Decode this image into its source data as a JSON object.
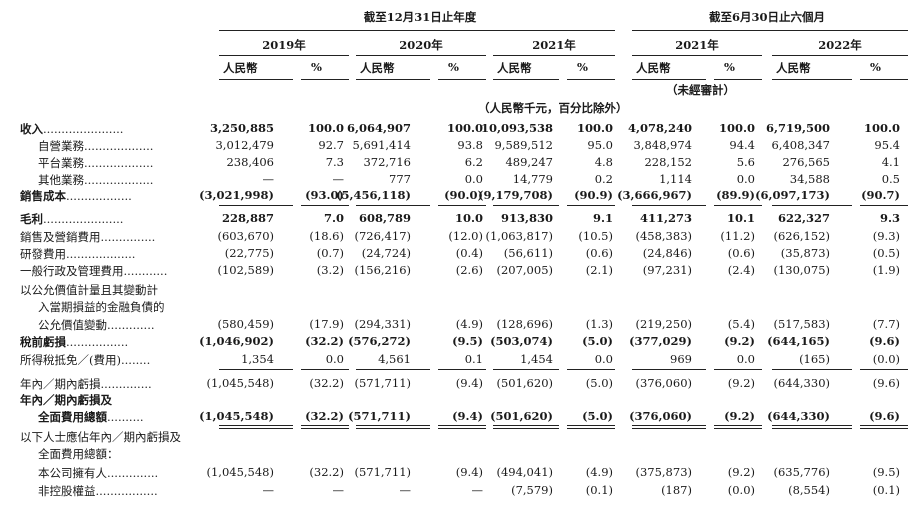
{
  "header": {
    "period_year": "截至12月31日止年度",
    "period_half": "截至6月30日止六個月",
    "years": [
      "2019年",
      "2020年",
      "2021年",
      "2021年",
      "2022年"
    ],
    "col_rmb": "人民幣",
    "col_pct": "%",
    "unaudited": "（未經審計）",
    "unit_note": "（人民幣千元，百分比除外）"
  },
  "rows": [
    {
      "label": "收入",
      "dots": "......................",
      "bold": true,
      "indent": 0,
      "values": [
        "3,250,885",
        "100.0",
        "6,064,907",
        "100.0",
        "10,093,538",
        "100.0",
        "4,078,240",
        "100.0",
        "6,719,500",
        "100.0"
      ]
    },
    {
      "label": "自營業務",
      "dots": "...................",
      "bold": false,
      "indent": 1,
      "values": [
        "3,012,479",
        "92.7",
        "5,691,414",
        "93.8",
        "9,589,512",
        "95.0",
        "3,848,974",
        "94.4",
        "6,408,347",
        "95.4"
      ]
    },
    {
      "label": "平台業務",
      "dots": "...................",
      "bold": false,
      "indent": 1,
      "values": [
        "238,406",
        "7.3",
        "372,716",
        "6.2",
        "489,247",
        "4.8",
        "228,152",
        "5.6",
        "276,565",
        "4.1"
      ]
    },
    {
      "label": "其他業務",
      "dots": "...................",
      "bold": false,
      "indent": 1,
      "values": [
        "—",
        "—",
        "777",
        "0.0",
        "14,779",
        "0.2",
        "1,114",
        "0.0",
        "34,588",
        "0.5"
      ]
    },
    {
      "label": "銷售成本",
      "dots": "..................",
      "bold": true,
      "indent": 0,
      "values": [
        "(3,021,998)",
        "(93.0)",
        "(5,456,118)",
        "(90.0)",
        "(9,179,708)",
        "(90.9)",
        "(3,666,967)",
        "(89.9)",
        "(6,097,173)",
        "(90.7)"
      ]
    },
    {
      "label": "毛利",
      "dots": "......................",
      "bold": true,
      "indent": 0,
      "values": [
        "228,887",
        "7.0",
        "608,789",
        "10.0",
        "913,830",
        "9.1",
        "411,273",
        "10.1",
        "622,327",
        "9.3"
      ]
    },
    {
      "label": "銷售及營銷費用",
      "dots": "...............",
      "bold": false,
      "indent": 0,
      "values": [
        "(603,670)",
        "(18.6)",
        "(726,417)",
        "(12.0)",
        "(1,063,817)",
        "(10.5)",
        "(458,383)",
        "(11.2)",
        "(626,152)",
        "(9.3)"
      ]
    },
    {
      "label": "研發費用",
      "dots": "...................",
      "bold": false,
      "indent": 0,
      "values": [
        "(22,775)",
        "(0.7)",
        "(24,724)",
        "(0.4)",
        "(56,611)",
        "(0.6)",
        "(24,846)",
        "(0.6)",
        "(35,873)",
        "(0.5)"
      ]
    },
    {
      "label": "一般行政及管理費用",
      "dots": "............",
      "bold": false,
      "indent": 0,
      "values": [
        "(102,589)",
        "(3.2)",
        "(156,216)",
        "(2.6)",
        "(207,005)",
        "(2.1)",
        "(97,231)",
        "(2.4)",
        "(130,075)",
        "(1.9)"
      ]
    },
    {
      "label": "以公允價值計量且其變動計",
      "dots": "",
      "bold": false,
      "indent": 0,
      "values": []
    },
    {
      "label": "入當期損益的金融負債的",
      "dots": "",
      "bold": false,
      "indent": 1,
      "values": []
    },
    {
      "label": "公允價值變動",
      "dots": ".............",
      "bold": false,
      "indent": 1,
      "values": [
        "(580,459)",
        "(17.9)",
        "(294,331)",
        "(4.9)",
        "(128,696)",
        "(1.3)",
        "(219,250)",
        "(5.4)",
        "(517,583)",
        "(7.7)"
      ]
    },
    {
      "label": "稅前虧損",
      "dots": ".................",
      "bold": true,
      "indent": 0,
      "values": [
        "(1,046,902)",
        "(32.2)",
        "(576,272)",
        "(9.5)",
        "(503,074)",
        "(5.0)",
        "(377,029)",
        "(9.2)",
        "(644,165)",
        "(9.6)"
      ]
    },
    {
      "label": "所得稅抵免／(費用)",
      "dots": "........",
      "bold": false,
      "indent": 0,
      "values": [
        "1,354",
        "0.0",
        "4,561",
        "0.1",
        "1,454",
        "0.0",
        "969",
        "0.0",
        "(165)",
        "(0.0)"
      ]
    },
    {
      "label": "年內／期內虧損",
      "dots": "..............",
      "bold": false,
      "indent": 0,
      "values": [
        "(1,045,548)",
        "(32.2)",
        "(571,711)",
        "(9.4)",
        "(501,620)",
        "(5.0)",
        "(376,060)",
        "(9.2)",
        "(644,330)",
        "(9.6)"
      ]
    },
    {
      "label": "年內／期內虧損及",
      "dots": "",
      "bold": true,
      "indent": 0,
      "values": []
    },
    {
      "label": "全面費用總額",
      "dots": "..........",
      "bold": true,
      "indent": 1,
      "values": [
        "(1,045,548)",
        "(32.2)",
        "(571,711)",
        "(9.4)",
        "(501,620)",
        "(5.0)",
        "(376,060)",
        "(9.2)",
        "(644,330)",
        "(9.6)"
      ]
    },
    {
      "label": "以下人士應佔年內／期內虧損及",
      "dots": "",
      "bold": false,
      "indent": 0,
      "values": []
    },
    {
      "label": "全面費用總額：",
      "dots": "",
      "bold": false,
      "indent": 1,
      "values": []
    },
    {
      "label": "本公司擁有人",
      "dots": "..............",
      "bold": false,
      "indent": 1,
      "values": [
        "(1,045,548)",
        "(32.2)",
        "(571,711)",
        "(9.4)",
        "(494,041)",
        "(4.9)",
        "(375,873)",
        "(9.2)",
        "(635,776)",
        "(9.5)"
      ]
    },
    {
      "label": "非控股權益",
      "dots": ".................",
      "bold": false,
      "indent": 1,
      "values": [
        "—",
        "—",
        "—",
        "—",
        "(7,579)",
        "(0.1)",
        "(187)",
        "(0.0)",
        "(8,554)",
        "(0.1)"
      ]
    }
  ]
}
